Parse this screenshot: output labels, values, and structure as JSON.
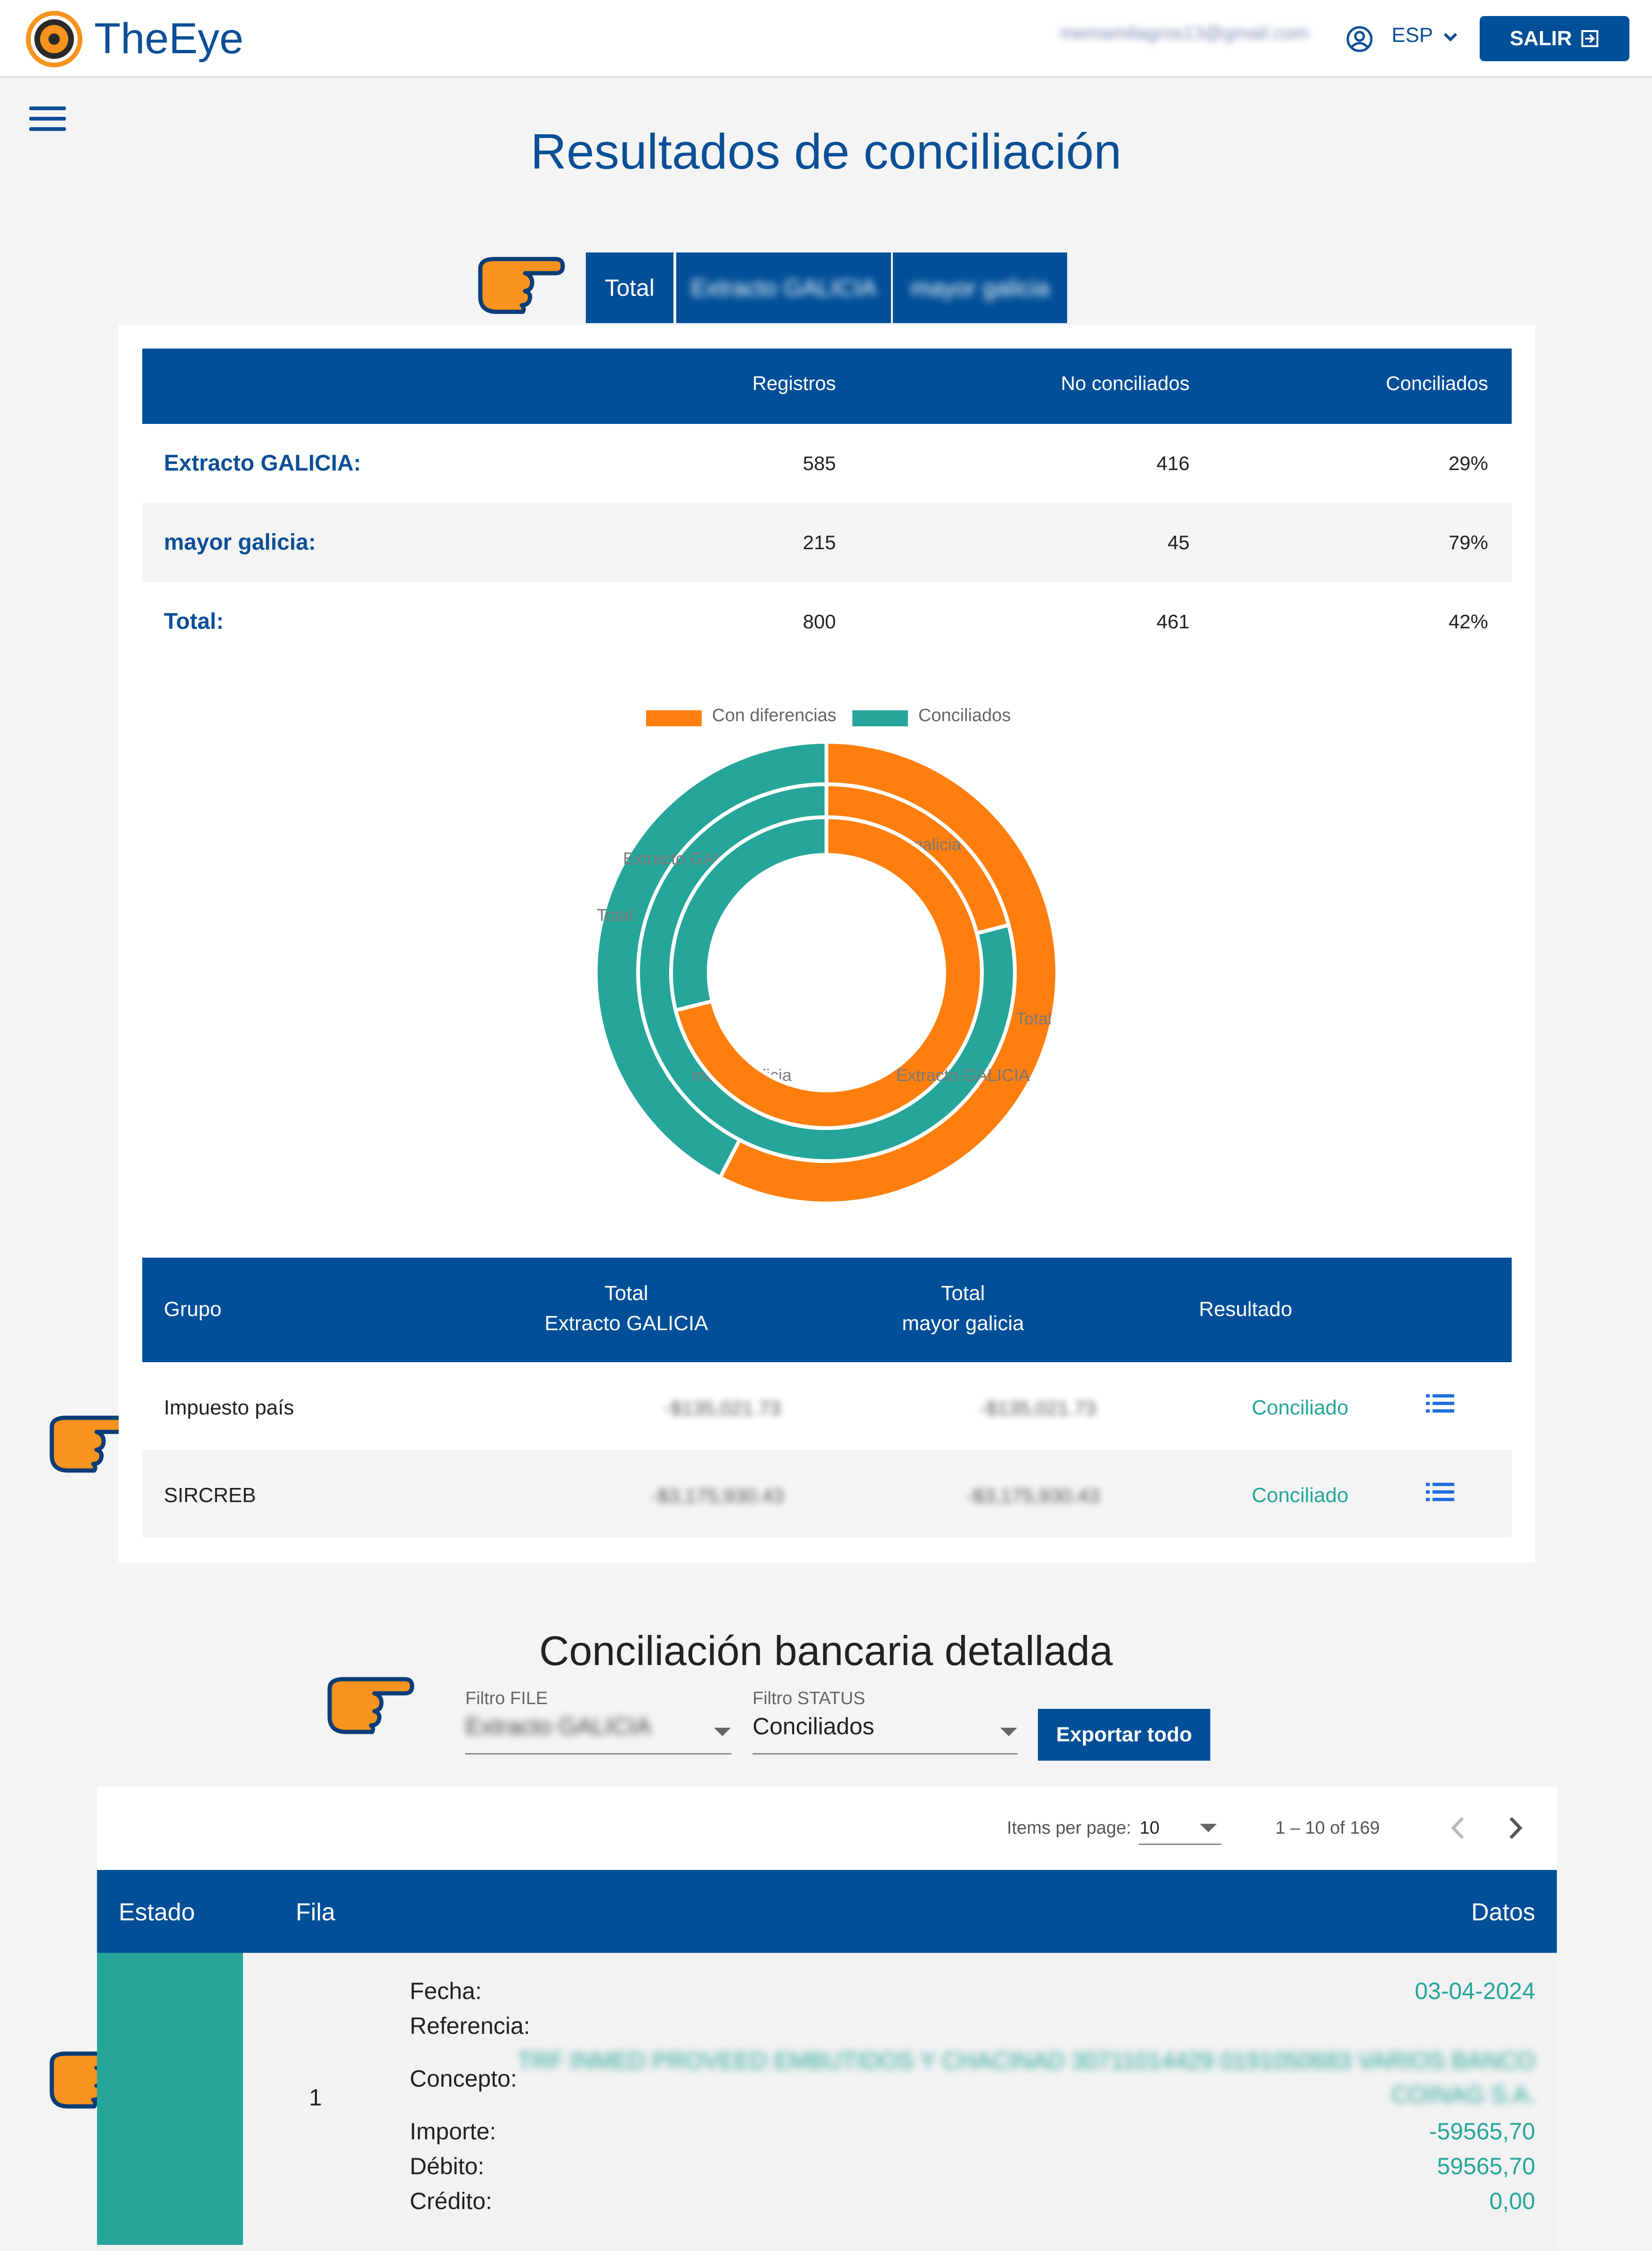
{
  "header": {
    "brand": "TheEye",
    "email": "memamilagros13@gmail.com",
    "language": "ESP",
    "logout_label": "SALIR"
  },
  "page_title": "Resultados de conciliación",
  "tabs": [
    {
      "label": "Total"
    },
    {
      "label": "Extracto GALICIA"
    },
    {
      "label": "mayor galicia"
    }
  ],
  "summary": {
    "columns": [
      "",
      "Registros",
      "No conciliados",
      "Conciliados"
    ],
    "rows": [
      {
        "name": "Extracto GALICIA:",
        "registros": "585",
        "no_conciliados": "416",
        "conciliados": "29%"
      },
      {
        "name": "mayor galicia:",
        "registros": "215",
        "no_conciliados": "45",
        "conciliados": "79%"
      },
      {
        "name": "Total:",
        "registros": "800",
        "no_conciliados": "461",
        "conciliados": "42%"
      }
    ]
  },
  "chart_data": {
    "type": "pie",
    "legend": [
      "Con diferencias",
      "Conciliados"
    ],
    "legend_position": "top",
    "colors": {
      "Con diferencias": "#ff7f0e",
      "Conciliados": "#26a69a"
    },
    "rings": [
      {
        "name": "Total",
        "slices": [
          {
            "label": "Total",
            "series": "Con diferencias",
            "value": 461
          },
          {
            "label": "Total",
            "series": "Conciliados",
            "value": 339
          }
        ]
      },
      {
        "name": "mayor galicia",
        "slices": [
          {
            "label": "mayor galicia",
            "series": "Con diferencias",
            "value": 45
          },
          {
            "label": "mayor galicia",
            "series": "Conciliados",
            "value": 170
          }
        ]
      },
      {
        "name": "Extracto GALICIA",
        "slices": [
          {
            "label": "Extracto GALICIA",
            "series": "Con diferencias",
            "value": 416
          },
          {
            "label": "Extracto GALICIA",
            "series": "Conciliados",
            "value": 169
          }
        ]
      }
    ]
  },
  "groups": {
    "columns": {
      "grupo": "Grupo",
      "total_extracto_1": "Total",
      "total_extracto_2": "Extracto GALICIA",
      "total_mayor_1": "Total",
      "total_mayor_2": "mayor galicia",
      "resultado": "Resultado"
    },
    "rows": [
      {
        "grupo": "Impuesto país",
        "total_extracto": "-$135,021.73",
        "total_mayor": "-$135,021.73",
        "resultado": "Conciliado"
      },
      {
        "grupo": "SIRCREB",
        "total_extracto": "-$3,175,930.43",
        "total_mayor": "-$3,175,930.43",
        "resultado": "Conciliado"
      }
    ]
  },
  "detail": {
    "title": "Conciliación bancaria detallada",
    "filter_file_label": "Filtro FILE",
    "filter_file_value": "Extracto GALICIA",
    "filter_status_label": "Filtro STATUS",
    "filter_status_value": "Conciliados",
    "export_label": "Exportar todo",
    "items_per_page_label": "Items per page:",
    "items_per_page_value": "10",
    "range_label": "1 – 10 of 169",
    "columns": {
      "estado": "Estado",
      "fila": "Fila",
      "datos": "Datos"
    },
    "row": {
      "fila": "1",
      "fecha_label": "Fecha:",
      "fecha": "03-04-2024",
      "referencia_label": "Referencia:",
      "concepto_label": "Concepto:",
      "concepto_line1": "TRF INMED PROVEED EMBUTIDOS Y CHACINAD 30711014429 0191050683 VARIOS BANCO",
      "concepto_line2": "COINAG S.A.",
      "importe_label": "Importe:",
      "importe": "-59565,70",
      "debito_label": "Débito:",
      "debito": "59565,70",
      "credito_label": "Crédito:",
      "credito": "0,00"
    }
  }
}
